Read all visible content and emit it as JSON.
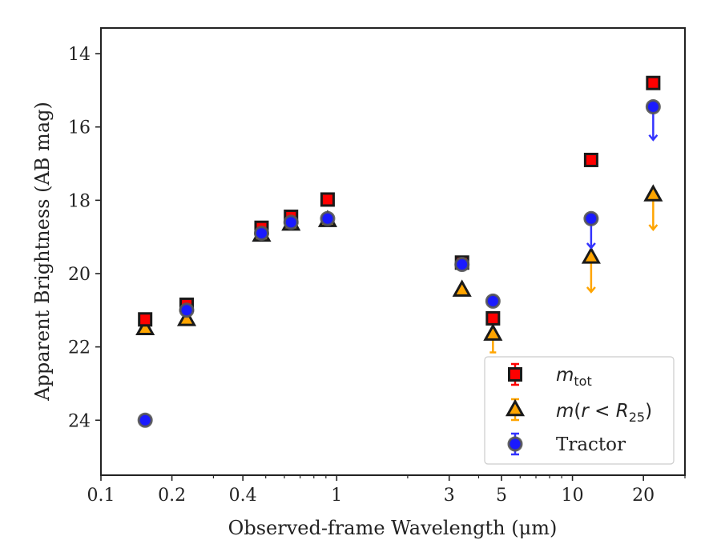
{
  "chart_data": {
    "type": "scatter",
    "xlabel": "Observed-frame Wavelength (μm)",
    "ylabel": "Apparent Brightness (AB mag)",
    "xscale": "log",
    "xlim": [
      0.1,
      30
    ],
    "ylim": [
      25.5,
      13.3
    ],
    "y_inverted": true,
    "x_ticks": [
      0.1,
      0.2,
      0.4,
      1,
      3,
      5,
      10,
      20
    ],
    "x_tick_labels": [
      "0.1",
      "0.2",
      "0.4",
      "1",
      "3",
      "5",
      "10",
      "20"
    ],
    "y_ticks": [
      14,
      16,
      18,
      20,
      22,
      24
    ],
    "y_tick_labels": [
      "14",
      "16",
      "18",
      "20",
      "22",
      "24"
    ],
    "grid": false,
    "legend_position": "lower-right",
    "series": [
      {
        "name": "m_tot",
        "legend_label": "m_tot",
        "marker": "square",
        "face_color": "#ff0000",
        "edge_color": "#1a1a1a",
        "error_color": "#ff0000",
        "points": [
          {
            "x": 0.154,
            "y": 21.25
          },
          {
            "x": 0.231,
            "y": 20.85
          },
          {
            "x": 0.48,
            "y": 18.75
          },
          {
            "x": 0.64,
            "y": 18.45
          },
          {
            "x": 0.915,
            "y": 17.98
          },
          {
            "x": 3.4,
            "y": 19.7
          },
          {
            "x": 4.6,
            "y": 21.22
          },
          {
            "x": 12.0,
            "y": 16.9
          },
          {
            "x": 22.0,
            "y": 14.8
          }
        ]
      },
      {
        "name": "m(r < R25)",
        "legend_label": "m(r < R25)",
        "marker": "triangle",
        "face_color": "#ffa500",
        "edge_color": "#1a1a1a",
        "error_color": "#ffa500",
        "points": [
          {
            "x": 0.154,
            "y": 21.5
          },
          {
            "x": 0.231,
            "y": 21.25
          },
          {
            "x": 0.48,
            "y": 18.95
          },
          {
            "x": 0.64,
            "y": 18.65
          },
          {
            "x": 0.915,
            "y": 18.55
          },
          {
            "x": 3.4,
            "y": 20.45
          },
          {
            "x": 4.6,
            "y": 21.65,
            "err": 0.5
          },
          {
            "x": 12.0,
            "y": 19.55,
            "upper_limit": true,
            "arrow_to": 20.5
          },
          {
            "x": 22.0,
            "y": 17.85,
            "upper_limit": true,
            "arrow_to": 18.8
          }
        ]
      },
      {
        "name": "Tractor",
        "legend_label": "Tractor",
        "marker": "circle",
        "face_color": "#1a1aff",
        "edge_color": "#555555",
        "error_color": "#3333ff",
        "points": [
          {
            "x": 0.154,
            "y": 24.0
          },
          {
            "x": 0.231,
            "y": 21.0
          },
          {
            "x": 0.48,
            "y": 18.9
          },
          {
            "x": 0.64,
            "y": 18.6
          },
          {
            "x": 0.915,
            "y": 18.5
          },
          {
            "x": 3.4,
            "y": 19.75
          },
          {
            "x": 4.6,
            "y": 20.75
          },
          {
            "x": 12.0,
            "y": 18.5,
            "upper_limit": true,
            "arrow_to": 19.3
          },
          {
            "x": 22.0,
            "y": 15.45,
            "upper_limit": true,
            "arrow_to": 16.35
          }
        ]
      }
    ]
  },
  "legend": {
    "tractor_label": "Tractor"
  }
}
